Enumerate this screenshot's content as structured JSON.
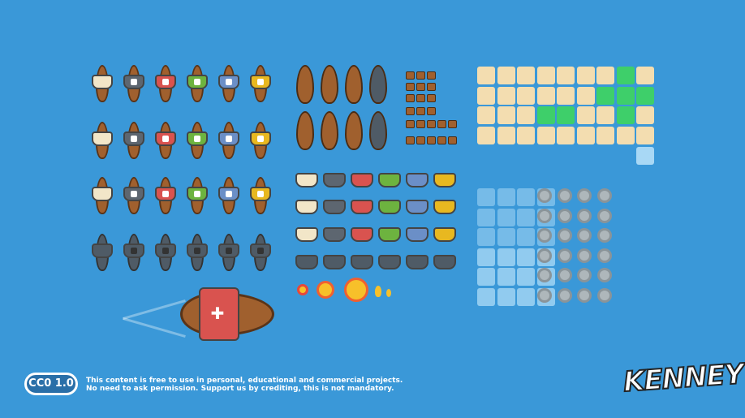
{
  "colors": {
    "background": "#3a98d8",
    "sail_colors": [
      "#f2e6c8",
      "#5d6670",
      "#d9534f",
      "#6db33f",
      "#6b8fc7",
      "#e8b820"
    ],
    "ship_row_4_color": "#4f5b66",
    "sand": "#f3ddb0",
    "grass": "#3ecf6a",
    "water": "#a8d8f5"
  },
  "license": {
    "badge": "CC0 1.0",
    "line1": "This content is free to use in personal, educational and commercial projects.",
    "line2": "No need to ask permission. Support us by crediting, this is not mandatory."
  },
  "logo": "KENNEY"
}
